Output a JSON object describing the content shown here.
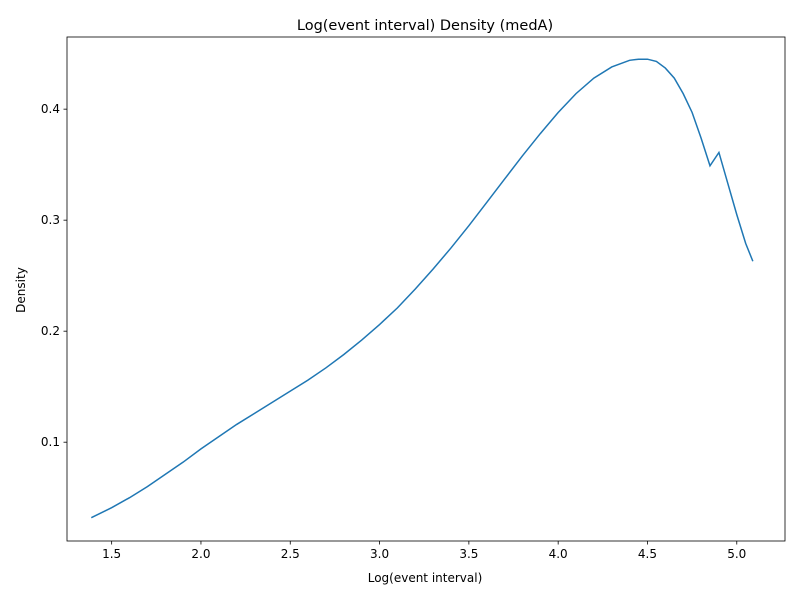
{
  "chart_data": {
    "type": "line",
    "title": "Log(event interval) Density (medA)",
    "xlabel": "Log(event interval)",
    "ylabel": "Density",
    "xlim": [
      1.25,
      5.27
    ],
    "ylim": [
      0.011,
      0.465
    ],
    "xticks": [
      1.5,
      2.0,
      2.5,
      3.0,
      3.5,
      4.0,
      4.5,
      5.0
    ],
    "xtick_labels": [
      "1.5",
      "2.0",
      "2.5",
      "3.0",
      "3.5",
      "4.0",
      "4.5",
      "5.0"
    ],
    "yticks": [
      0.1,
      0.2,
      0.3,
      0.4
    ],
    "ytick_labels": [
      "0.1",
      "0.2",
      "0.3",
      "0.4"
    ],
    "grid": false,
    "line_color": "#1f77b4",
    "series": [
      {
        "x": [
          1.386,
          1.5,
          1.6,
          1.7,
          1.8,
          1.9,
          2.0,
          2.1,
          2.2,
          2.3,
          2.4,
          2.5,
          2.6,
          2.7,
          2.8,
          2.9,
          3.0,
          3.1,
          3.2,
          3.3,
          3.4,
          3.5,
          3.6,
          3.7,
          3.8,
          3.9,
          4.0,
          4.1,
          4.2,
          4.3,
          4.4,
          4.45,
          4.5,
          4.55,
          4.6,
          4.65,
          4.7,
          4.75,
          4.8,
          4.85,
          4.9,
          4.95,
          5.0,
          5.05,
          5.09
        ],
        "y": [
          0.032,
          0.041,
          0.05,
          0.06,
          0.071,
          0.082,
          0.094,
          0.105,
          0.116,
          0.126,
          0.136,
          0.146,
          0.156,
          0.167,
          0.179,
          0.192,
          0.206,
          0.221,
          0.238,
          0.256,
          0.275,
          0.295,
          0.316,
          0.337,
          0.358,
          0.378,
          0.397,
          0.414,
          0.428,
          0.438,
          0.444,
          0.445,
          0.445,
          0.443,
          0.437,
          0.428,
          0.414,
          0.397,
          0.374,
          0.349,
          0.361,
          0.333,
          0.305,
          0.279,
          0.263
        ]
      }
    ]
  }
}
